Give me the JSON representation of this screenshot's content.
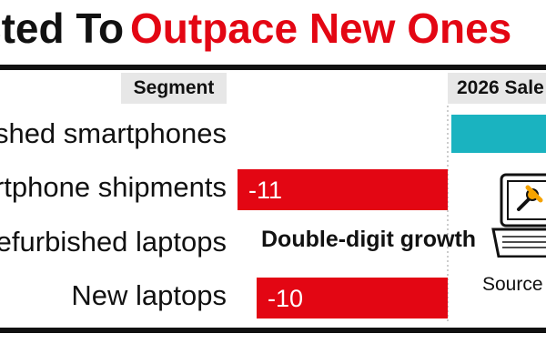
{
  "title": {
    "part1": "cted To",
    "part2": "Outpace New Ones"
  },
  "table": {
    "col_segment": "Segment",
    "col_sales": "2026 Sale"
  },
  "source_label": "Source",
  "chart_data": {
    "type": "bar",
    "orientation": "horizontal",
    "categories": [
      "shed smartphones",
      "rtphone shipments",
      "efurbished laptops",
      "New laptops"
    ],
    "values": [
      null,
      -11,
      null,
      -10
    ],
    "value_labels": [
      "",
      "-11",
      "",
      "-10"
    ],
    "positive_bar_color": "#1ab3c0",
    "negative_bar_color": "#e30613",
    "annotations": [
      {
        "category": "efurbished laptops",
        "text": "Double-digit growth"
      }
    ]
  },
  "colors": {
    "accent_red": "#e30613",
    "accent_teal": "#1ab3c0"
  }
}
